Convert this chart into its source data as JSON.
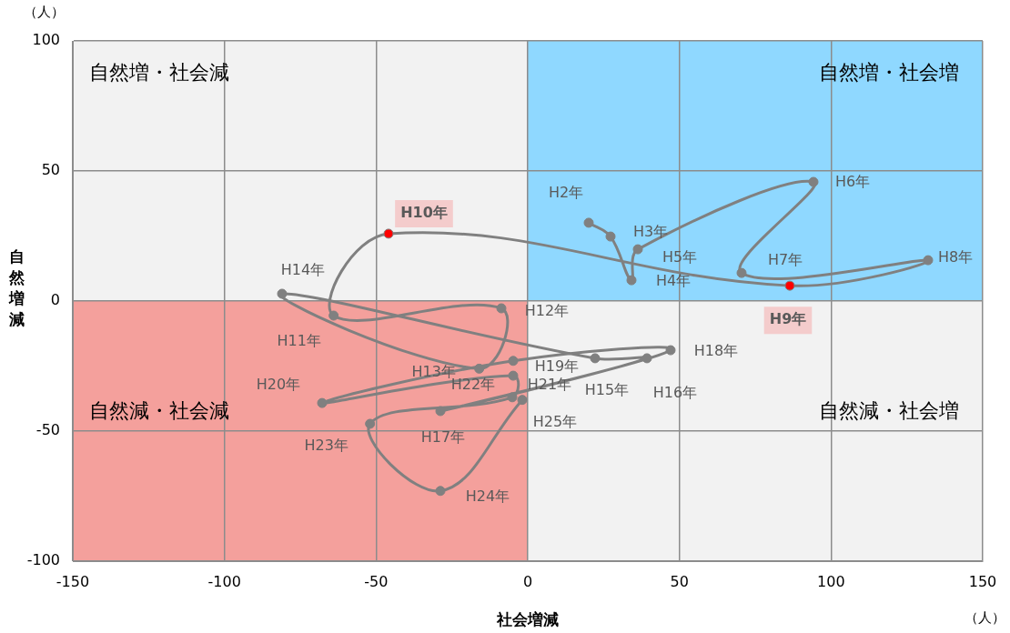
{
  "chart_data": {
    "type": "line",
    "xlabel": "社会増減",
    "ylabel": "自然増減",
    "x": [
      20.1,
      27.3,
      34.2,
      36.3,
      94.2,
      70.5,
      132,
      86.4,
      -45.9,
      -64,
      -8.7,
      -16,
      -81,
      22.2,
      39.3,
      -28.8,
      47.1,
      -4.8,
      -67.8,
      -4.8,
      -5.1,
      -52,
      -28.8,
      -1.8
    ],
    "series": [
      {
        "color": "#808080",
        "colors": [
          "#808080",
          "#808080",
          "#808080",
          "#808080",
          "#808080",
          "#808080",
          "#808080",
          "#ff0000",
          "#ff0000",
          "#808080",
          "#808080",
          "#808080",
          "#808080",
          "#808080",
          "#808080",
          "#808080",
          "#808080",
          "#808080",
          "#808080",
          "#808080",
          "#808080",
          "#808080",
          "#808080",
          "#808080"
        ],
        "values": [
          30.1,
          24.8,
          8,
          19.9,
          45.8,
          10.8,
          15.7,
          5.9,
          25.9,
          -5.6,
          -2.8,
          -26,
          2.8,
          -22,
          -22,
          -42.3,
          -18.9,
          -23,
          -39.2,
          -28.7,
          -37,
          -47.2,
          -73,
          -38
        ]
      }
    ],
    "xlim": [
      -150,
      150
    ],
    "xticks": [
      -150,
      -100,
      -50,
      0,
      50,
      100,
      150
    ],
    "ylim": [
      -100,
      100
    ],
    "yticks": [
      -100,
      -50,
      0,
      50,
      100
    ],
    "grid": true,
    "legend": false,
    "marker": "circle",
    "annotations": [
      "自然増・社会減",
      "自然増・社会増",
      "自然減・社会減",
      "自然減・社会増",
      "（人）",
      "（人）",
      {
        "text": "H2年",
        "x": 20.1,
        "y": 30.1
      },
      {
        "text": "H3年",
        "x": 27.3,
        "y": 24.8
      },
      {
        "text": "H4年",
        "x": 34.2,
        "y": 8
      },
      {
        "text": "H5年",
        "x": 36.3,
        "y": 19.9
      },
      {
        "text": "H6年",
        "x": 94.2,
        "y": 45.8
      },
      {
        "text": "H7年",
        "x": 70.5,
        "y": 10.8
      },
      {
        "text": "H8年",
        "x": 132,
        "y": 15.7
      },
      {
        "text": "H9年",
        "x": 86.4,
        "y": 5.9
      },
      {
        "text": "H10年",
        "x": -45.9,
        "y": 25.9
      },
      {
        "text": "H11年",
        "x": -64,
        "y": -5.6
      },
      {
        "text": "H12年",
        "x": -8.7,
        "y": -2.8
      },
      {
        "text": "H13年",
        "x": -16,
        "y": -26
      },
      {
        "text": "H14年",
        "x": -81,
        "y": 2.8
      },
      {
        "text": "H15年",
        "x": 22.2,
        "y": -22
      },
      {
        "text": "H16年",
        "x": 39.3,
        "y": -22
      },
      {
        "text": "H17年",
        "x": -28.8,
        "y": -42.3
      },
      {
        "text": "H18年",
        "x": 47.1,
        "y": -18.9
      },
      {
        "text": "H19年",
        "x": -4.8,
        "y": -23
      },
      {
        "text": "H20年",
        "x": -67.8,
        "y": -39.2
      },
      {
        "text": "H21年",
        "x": -4.8,
        "y": -28.7
      },
      {
        "text": "H22年",
        "x": -5.1,
        "y": -37
      },
      {
        "text": "H23年",
        "x": -52,
        "y": -47.2
      },
      {
        "text": "H24年",
        "x": -28.8,
        "y": -73
      },
      {
        "text": "H25年",
        "x": -1.8,
        "y": -38
      }
    ]
  }
}
